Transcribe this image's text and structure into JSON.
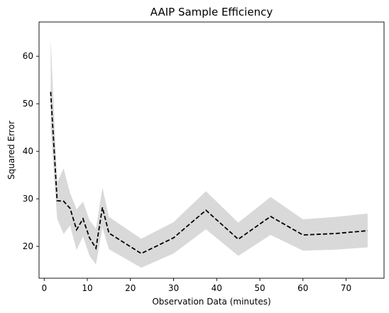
{
  "chart_data": {
    "type": "line",
    "title": "AAIP Sample Efficiency",
    "xlabel": "Observation Data (minutes)",
    "ylabel": "Squared Error",
    "xlim": [
      -1.2,
      78.8
    ],
    "ylim": [
      13.3,
      67.2
    ],
    "xticks": [
      0,
      10,
      20,
      30,
      40,
      50,
      60,
      70
    ],
    "yticks": [
      20,
      30,
      40,
      50,
      60
    ],
    "grid": false,
    "legend": "none",
    "colors": {
      "line": "#000000",
      "band": "#d9d9d9"
    },
    "series": [
      {
        "line_style": "dashed",
        "x": [
          1.5,
          3,
          4.5,
          6,
          7.5,
          9,
          10.5,
          12,
          13.5,
          15,
          22.5,
          30,
          37.5,
          45,
          52.5,
          60,
          67.5,
          75
        ],
        "y": [
          52.5,
          29.6,
          29.5,
          28.0,
          23.5,
          25.8,
          21.8,
          19.6,
          28.2,
          22.8,
          18.5,
          21.8,
          27.6,
          21.5,
          26.3,
          22.4,
          22.7,
          23.3
        ],
        "upper": [
          63.7,
          33.5,
          36.4,
          31.2,
          27.8,
          29.4,
          25.5,
          23.7,
          32.4,
          26.2,
          21.6,
          25.1,
          31.6,
          25.0,
          30.4,
          25.7,
          26.2,
          26.9
        ],
        "lower": [
          45.0,
          25.8,
          22.6,
          24.4,
          19.2,
          22.1,
          18.0,
          16.2,
          24.0,
          19.4,
          15.5,
          18.5,
          23.6,
          18.0,
          22.4,
          19.1,
          19.3,
          19.8
        ]
      }
    ]
  }
}
